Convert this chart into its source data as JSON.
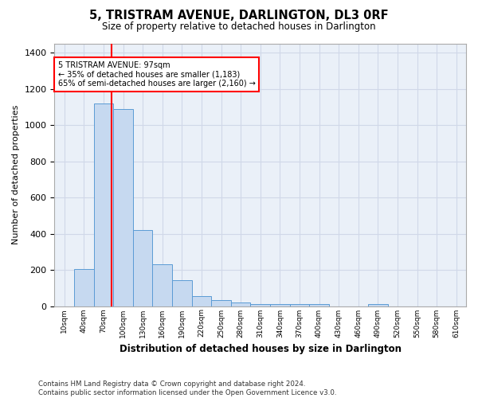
{
  "title": "5, TRISTRAM AVENUE, DARLINGTON, DL3 0RF",
  "subtitle": "Size of property relative to detached houses in Darlington",
  "xlabel": "Distribution of detached houses by size in Darlington",
  "ylabel": "Number of detached properties",
  "bar_labels": [
    "10sqm",
    "40sqm",
    "70sqm",
    "100sqm",
    "130sqm",
    "160sqm",
    "190sqm",
    "220sqm",
    "250sqm",
    "280sqm",
    "310sqm",
    "340sqm",
    "370sqm",
    "400sqm",
    "430sqm",
    "460sqm",
    "490sqm",
    "520sqm",
    "550sqm",
    "580sqm",
    "610sqm"
  ],
  "bar_values": [
    0,
    205,
    1120,
    1090,
    420,
    230,
    145,
    55,
    35,
    20,
    10,
    10,
    10,
    10,
    0,
    0,
    10,
    0,
    0,
    0,
    0
  ],
  "bar_color": "#c6d9f0",
  "bar_edge_color": "#5b9bd5",
  "grid_color": "#d0d8e8",
  "background_color": "#eaf0f8",
  "annotation_text": "5 TRISTRAM AVENUE: 97sqm\n← 35% of detached houses are smaller (1,183)\n65% of semi-detached houses are larger (2,160) →",
  "annotation_box_color": "white",
  "annotation_box_edge_color": "red",
  "property_line_x": 97,
  "ylim": [
    0,
    1450
  ],
  "yticks": [
    0,
    200,
    400,
    600,
    800,
    1000,
    1200,
    1400
  ],
  "footnote": "Contains HM Land Registry data © Crown copyright and database right 2024.\nContains public sector information licensed under the Open Government Licence v3.0.",
  "bin_width": 30
}
